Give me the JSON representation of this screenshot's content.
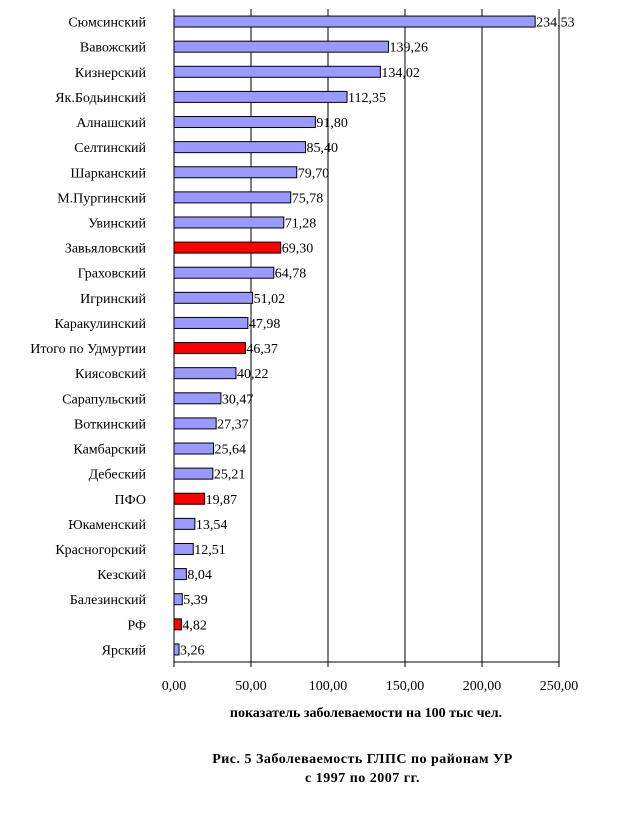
{
  "chart_data": {
    "type": "bar",
    "orientation": "horizontal",
    "categories": [
      "Сюмсинский",
      "Вавожский",
      "Кизнерский",
      "Як.Бодьинский",
      "Алнашский",
      "Селтинский",
      "Шарканский",
      "М.Пургинский",
      "Увинский",
      "Завьяловский",
      "Граховский",
      "Игринский",
      "Каракулинский",
      "Итого по Удмуртии",
      "Киясовский",
      "Сарапульский",
      "Воткинский",
      "Камбарский",
      "Дебеский",
      "ПФО",
      "Юкаменский",
      "Красногорский",
      "Кезский",
      "Балезинский",
      "РФ",
      "Ярский"
    ],
    "values": [
      234.53,
      139.26,
      134.02,
      112.35,
      91.8,
      85.4,
      79.7,
      75.78,
      71.28,
      69.3,
      64.78,
      51.02,
      47.98,
      46.37,
      40.22,
      30.47,
      27.37,
      25.64,
      25.21,
      19.87,
      13.54,
      12.51,
      8.04,
      5.39,
      4.82,
      3.26
    ],
    "value_labels": [
      "234,53",
      "139,26",
      "134,02",
      "112,35",
      "91,80",
      "85,40",
      "79,70",
      "75,78",
      "71,28",
      "69,30",
      "64,78",
      "51,02",
      "47,98",
      "46,37",
      "40,22",
      "30,47",
      "27,37",
      "25,64",
      "25,21",
      "19,87",
      "13,54",
      "12,51",
      "8,04",
      "5,39",
      "4,82",
      "3,26"
    ],
    "highlighted": [
      "Завьяловский",
      "Итого по Удмуртии",
      "ПФО",
      "РФ"
    ],
    "xlim": [
      0,
      250
    ],
    "xticks": [
      0,
      50,
      100,
      150,
      200,
      250
    ],
    "xtick_labels": [
      "0,00",
      "50,00",
      "100,00",
      "150,00",
      "200,00",
      "250,00"
    ],
    "xlabel": "показатель заболеваемости на 100 тыс чел.",
    "ylabel": "",
    "grid": true,
    "colors": {
      "bar": "#9999ff",
      "highlight": "#ff0000",
      "bar_border": "#000000",
      "grid": "#000000"
    }
  },
  "caption": {
    "line1": "Рис. 5 Заболеваемость ГЛПС по районам УР",
    "line2": "с 1997 по 2007 гг."
  }
}
